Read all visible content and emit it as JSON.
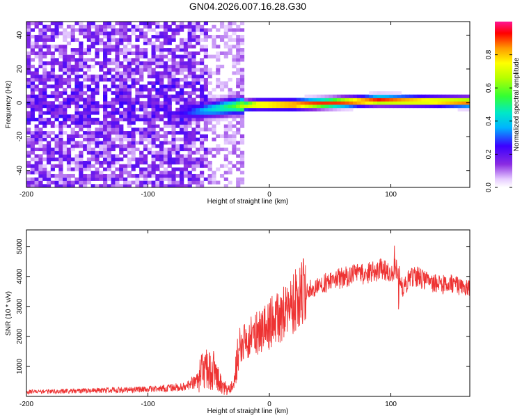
{
  "title": "GN04.2026.007.16.28.G30",
  "chart_data": [
    {
      "type": "heatmap",
      "xlabel": "Height of straight line (km)",
      "ylabel": "Frequency (Hz)",
      "xlim": [
        -200,
        165
      ],
      "ylim": [
        -50,
        48
      ],
      "xticks": [
        -200,
        -100,
        0,
        100
      ],
      "yticks": [
        -40,
        -20,
        0,
        20,
        40
      ],
      "colorbar": {
        "label": "Normalized spectral amplitude",
        "range": [
          0,
          1
        ],
        "ticks": [
          "0.0",
          "0.2",
          "0.4",
          "0.6",
          "0.8"
        ]
      },
      "features": {
        "noise_region_x": [
          -200,
          -50
        ],
        "sparse_column_x": [
          -27,
          -20
        ],
        "signal_ridge": [
          {
            "x": -70,
            "f": -6,
            "a": 0.25
          },
          {
            "x": -50,
            "f": -4,
            "a": 0.4
          },
          {
            "x": -30,
            "f": -2,
            "a": 0.55
          },
          {
            "x": -10,
            "f": -1,
            "a": 0.85
          },
          {
            "x": 20,
            "f": -1,
            "a": 0.95
          },
          {
            "x": 50,
            "f": 0,
            "a": 0.9
          },
          {
            "x": 90,
            "f": 1.5,
            "a": 0.95
          },
          {
            "x": 130,
            "f": 1,
            "a": 0.85
          },
          {
            "x": 165,
            "f": 0.5,
            "a": 0.9
          }
        ]
      }
    },
    {
      "type": "line",
      "xlabel": "Height of straight line (km)",
      "ylabel": "SNR (10 * v/v)",
      "xlim": [
        -200,
        165
      ],
      "ylim": [
        0,
        5550
      ],
      "xticks": [
        -200,
        -100,
        0,
        100
      ],
      "yticks": [
        1000,
        2000,
        3000,
        4000,
        5000
      ],
      "color": "#ee3333",
      "series": [
        {
          "name": "SNR",
          "x": [
            -200,
            -180,
            -160,
            -140,
            -120,
            -100,
            -90,
            -80,
            -70,
            -60,
            -55,
            -50,
            -45,
            -40,
            -35,
            -30,
            -25,
            -20,
            -15,
            -10,
            -5,
            0,
            5,
            10,
            15,
            20,
            25,
            30,
            40,
            50,
            60,
            70,
            80,
            90,
            95,
            100,
            105,
            110,
            115,
            120,
            130,
            140,
            150,
            165
          ],
          "values": [
            150,
            170,
            185,
            200,
            215,
            240,
            260,
            290,
            330,
            520,
            800,
            1000,
            800,
            450,
            220,
            350,
            1700,
            1900,
            2000,
            2100,
            2200,
            2400,
            2600,
            2700,
            2900,
            3100,
            3300,
            3550,
            3700,
            3850,
            3950,
            4050,
            4100,
            4200,
            4250,
            4150,
            4250,
            3600,
            3900,
            4000,
            3850,
            3700,
            3750,
            3650
          ]
        }
      ]
    }
  ]
}
